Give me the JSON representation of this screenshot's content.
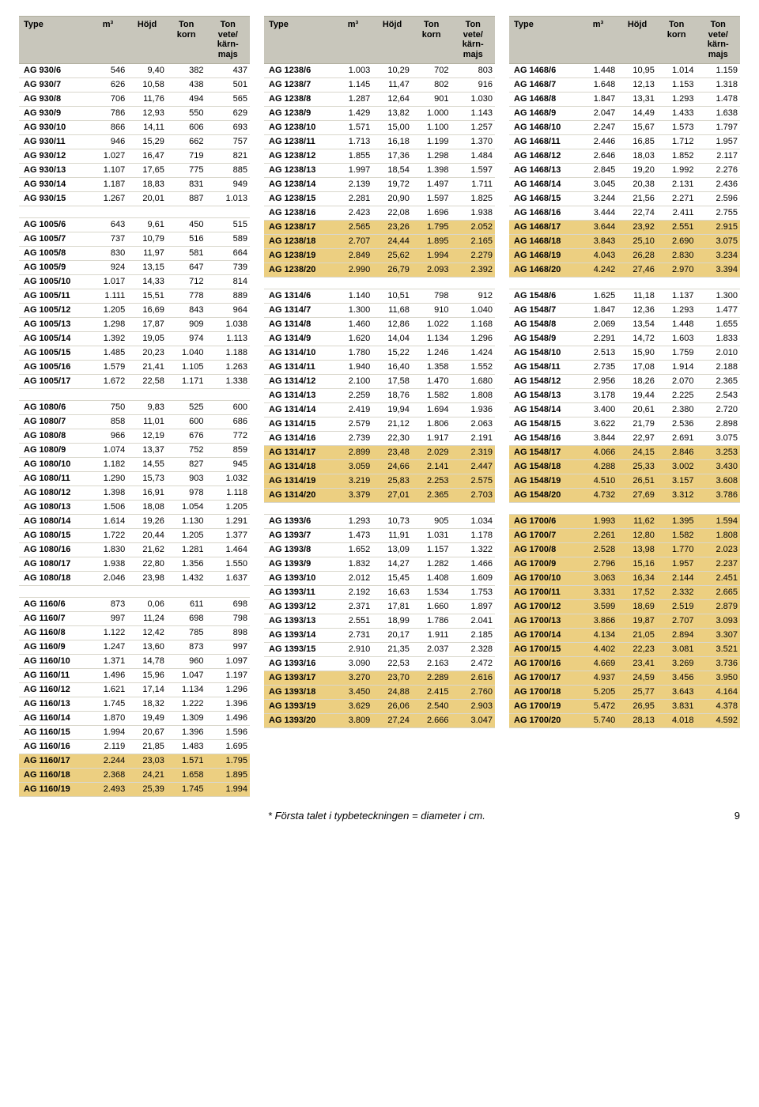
{
  "header": {
    "cols": [
      "Type",
      "m³",
      "Höjd",
      "Ton korn",
      "Ton vete/ kärn- majs"
    ]
  },
  "colors": {
    "header_bg": "#c8c6bb",
    "row_border": "#d9d7cc",
    "highlight_bg": "#eccf81",
    "text": "#000000",
    "background": "#ffffff"
  },
  "footnote_text": "* Första talet i typbeteckningen = diameter i cm.",
  "page_number": "9",
  "column1": [
    {
      "r": [
        "AG 930/6",
        "546",
        "9,40",
        "382",
        "437"
      ]
    },
    {
      "r": [
        "AG 930/7",
        "626",
        "10,58",
        "438",
        "501"
      ]
    },
    {
      "r": [
        "AG 930/8",
        "706",
        "11,76",
        "494",
        "565"
      ]
    },
    {
      "r": [
        "AG 930/9",
        "786",
        "12,93",
        "550",
        "629"
      ]
    },
    {
      "r": [
        "AG 930/10",
        "866",
        "14,11",
        "606",
        "693"
      ]
    },
    {
      "r": [
        "AG 930/11",
        "946",
        "15,29",
        "662",
        "757"
      ]
    },
    {
      "r": [
        "AG 930/12",
        "1.027",
        "16,47",
        "719",
        "821"
      ]
    },
    {
      "r": [
        "AG 930/13",
        "1.107",
        "17,65",
        "775",
        "885"
      ]
    },
    {
      "r": [
        "AG 930/14",
        "1.187",
        "18,83",
        "831",
        "949"
      ]
    },
    {
      "r": [
        "AG 930/15",
        "1.267",
        "20,01",
        "887",
        "1.013"
      ]
    },
    {
      "spacer": true
    },
    {
      "r": [
        "AG 1005/6",
        "643",
        "9,61",
        "450",
        "515"
      ]
    },
    {
      "r": [
        "AG 1005/7",
        "737",
        "10,79",
        "516",
        "589"
      ]
    },
    {
      "r": [
        "AG 1005/8",
        "830",
        "11,97",
        "581",
        "664"
      ]
    },
    {
      "r": [
        "AG 1005/9",
        "924",
        "13,15",
        "647",
        "739"
      ]
    },
    {
      "r": [
        "AG 1005/10",
        "1.017",
        "14,33",
        "712",
        "814"
      ]
    },
    {
      "r": [
        "AG 1005/11",
        "1.111",
        "15,51",
        "778",
        "889"
      ]
    },
    {
      "r": [
        "AG 1005/12",
        "1.205",
        "16,69",
        "843",
        "964"
      ]
    },
    {
      "r": [
        "AG 1005/13",
        "1.298",
        "17,87",
        "909",
        "1.038"
      ]
    },
    {
      "r": [
        "AG 1005/14",
        "1.392",
        "19,05",
        "974",
        "1.113"
      ]
    },
    {
      "r": [
        "AG 1005/15",
        "1.485",
        "20,23",
        "1.040",
        "1.188"
      ]
    },
    {
      "r": [
        "AG 1005/16",
        "1.579",
        "21,41",
        "1.105",
        "1.263"
      ]
    },
    {
      "r": [
        "AG 1005/17",
        "1.672",
        "22,58",
        "1.171",
        "1.338"
      ]
    },
    {
      "spacer": true
    },
    {
      "r": [
        "AG 1080/6",
        "750",
        "9,83",
        "525",
        "600"
      ]
    },
    {
      "r": [
        "AG 1080/7",
        "858",
        "11,01",
        "600",
        "686"
      ]
    },
    {
      "r": [
        "AG 1080/8",
        "966",
        "12,19",
        "676",
        "772"
      ]
    },
    {
      "r": [
        "AG 1080/9",
        "1.074",
        "13,37",
        "752",
        "859"
      ]
    },
    {
      "r": [
        "AG 1080/10",
        "1.182",
        "14,55",
        "827",
        "945"
      ]
    },
    {
      "r": [
        "AG 1080/11",
        "1.290",
        "15,73",
        "903",
        "1.032"
      ]
    },
    {
      "r": [
        "AG 1080/12",
        "1.398",
        "16,91",
        "978",
        "1.118"
      ]
    },
    {
      "r": [
        "AG 1080/13",
        "1.506",
        "18,08",
        "1.054",
        "1.205"
      ]
    },
    {
      "r": [
        "AG 1080/14",
        "1.614",
        "19,26",
        "1.130",
        "1.291"
      ]
    },
    {
      "r": [
        "AG 1080/15",
        "1.722",
        "20,44",
        "1.205",
        "1.377"
      ]
    },
    {
      "r": [
        "AG 1080/16",
        "1.830",
        "21,62",
        "1.281",
        "1.464"
      ]
    },
    {
      "r": [
        "AG 1080/17",
        "1.938",
        "22,80",
        "1.356",
        "1.550"
      ]
    },
    {
      "r": [
        "AG 1080/18",
        "2.046",
        "23,98",
        "1.432",
        "1.637"
      ]
    },
    {
      "spacer": true
    },
    {
      "r": [
        "AG 1160/6",
        "873",
        "0,06",
        "611",
        "698"
      ]
    },
    {
      "r": [
        "AG 1160/7",
        "997",
        "11,24",
        "698",
        "798"
      ]
    },
    {
      "r": [
        "AG 1160/8",
        "1.122",
        "12,42",
        "785",
        "898"
      ]
    },
    {
      "r": [
        "AG 1160/9",
        "1.247",
        "13,60",
        "873",
        "997"
      ]
    },
    {
      "r": [
        "AG 1160/10",
        "1.371",
        "14,78",
        "960",
        "1.097"
      ]
    },
    {
      "r": [
        "AG 1160/11",
        "1.496",
        "15,96",
        "1.047",
        "1.197"
      ]
    },
    {
      "r": [
        "AG 1160/12",
        "1.621",
        "17,14",
        "1.134",
        "1.296"
      ]
    },
    {
      "r": [
        "AG 1160/13",
        "1.745",
        "18,32",
        "1.222",
        "1.396"
      ]
    },
    {
      "r": [
        "AG 1160/14",
        "1.870",
        "19,49",
        "1.309",
        "1.496"
      ]
    },
    {
      "r": [
        "AG 1160/15",
        "1.994",
        "20,67",
        "1.396",
        "1.596"
      ]
    },
    {
      "r": [
        "AG 1160/16",
        "2.119",
        "21,85",
        "1.483",
        "1.695"
      ]
    },
    {
      "r": [
        "AG 1160/17",
        "2.244",
        "23,03",
        "1.571",
        "1.795"
      ],
      "hl": true
    },
    {
      "r": [
        "AG 1160/18",
        "2.368",
        "24,21",
        "1.658",
        "1.895"
      ],
      "hl": true
    },
    {
      "r": [
        "AG 1160/19",
        "2.493",
        "25,39",
        "1.745",
        "1.994"
      ],
      "hl": true
    }
  ],
  "column2": [
    {
      "r": [
        "AG 1238/6",
        "1.003",
        "10,29",
        "702",
        "803"
      ]
    },
    {
      "r": [
        "AG 1238/7",
        "1.145",
        "11,47",
        "802",
        "916"
      ]
    },
    {
      "r": [
        "AG 1238/8",
        "1.287",
        "12,64",
        "901",
        "1.030"
      ]
    },
    {
      "r": [
        "AG 1238/9",
        "1.429",
        "13,82",
        "1.000",
        "1.143"
      ]
    },
    {
      "r": [
        "AG 1238/10",
        "1.571",
        "15,00",
        "1.100",
        "1.257"
      ]
    },
    {
      "r": [
        "AG 1238/11",
        "1.713",
        "16,18",
        "1.199",
        "1.370"
      ]
    },
    {
      "r": [
        "AG 1238/12",
        "1.855",
        "17,36",
        "1.298",
        "1.484"
      ]
    },
    {
      "r": [
        "AG 1238/13",
        "1.997",
        "18,54",
        "1.398",
        "1.597"
      ]
    },
    {
      "r": [
        "AG 1238/14",
        "2.139",
        "19,72",
        "1.497",
        "1.711"
      ]
    },
    {
      "r": [
        "AG 1238/15",
        "2.281",
        "20,90",
        "1.597",
        "1.825"
      ]
    },
    {
      "r": [
        "AG 1238/16",
        "2.423",
        "22,08",
        "1.696",
        "1.938"
      ]
    },
    {
      "r": [
        "AG 1238/17",
        "2.565",
        "23,26",
        "1.795",
        "2.052"
      ],
      "hl": true
    },
    {
      "r": [
        "AG 1238/18",
        "2.707",
        "24,44",
        "1.895",
        "2.165"
      ],
      "hl": true
    },
    {
      "r": [
        "AG 1238/19",
        "2.849",
        "25,62",
        "1.994",
        "2.279"
      ],
      "hl": true
    },
    {
      "r": [
        "AG 1238/20",
        "2.990",
        "26,79",
        "2.093",
        "2.392"
      ],
      "hl": true
    },
    {
      "spacer": true
    },
    {
      "r": [
        "AG 1314/6",
        "1.140",
        "10,51",
        "798",
        "912"
      ]
    },
    {
      "r": [
        "AG 1314/7",
        "1.300",
        "11,68",
        "910",
        "1.040"
      ]
    },
    {
      "r": [
        "AG 1314/8",
        "1.460",
        "12,86",
        "1.022",
        "1.168"
      ]
    },
    {
      "r": [
        "AG 1314/9",
        "1.620",
        "14,04",
        "1.134",
        "1.296"
      ]
    },
    {
      "r": [
        "AG 1314/10",
        "1.780",
        "15,22",
        "1.246",
        "1.424"
      ]
    },
    {
      "r": [
        "AG 1314/11",
        "1.940",
        "16,40",
        "1.358",
        "1.552"
      ]
    },
    {
      "r": [
        "AG 1314/12",
        "2.100",
        "17,58",
        "1.470",
        "1.680"
      ]
    },
    {
      "r": [
        "AG 1314/13",
        "2.259",
        "18,76",
        "1.582",
        "1.808"
      ]
    },
    {
      "r": [
        "AG 1314/14",
        "2.419",
        "19,94",
        "1.694",
        "1.936"
      ]
    },
    {
      "r": [
        "AG 1314/15",
        "2.579",
        "21,12",
        "1.806",
        "2.063"
      ]
    },
    {
      "r": [
        "AG 1314/16",
        "2.739",
        "22,30",
        "1.917",
        "2.191"
      ]
    },
    {
      "r": [
        "AG 1314/17",
        "2.899",
        "23,48",
        "2.029",
        "2.319"
      ],
      "hl": true
    },
    {
      "r": [
        "AG 1314/18",
        "3.059",
        "24,66",
        "2.141",
        "2.447"
      ],
      "hl": true
    },
    {
      "r": [
        "AG 1314/19",
        "3.219",
        "25,83",
        "2.253",
        "2.575"
      ],
      "hl": true
    },
    {
      "r": [
        "AG 1314/20",
        "3.379",
        "27,01",
        "2.365",
        "2.703"
      ],
      "hl": true
    },
    {
      "spacer": true
    },
    {
      "r": [
        "AG 1393/6",
        "1.293",
        "10,73",
        "905",
        "1.034"
      ]
    },
    {
      "r": [
        "AG 1393/7",
        "1.473",
        "11,91",
        "1.031",
        "1.178"
      ]
    },
    {
      "r": [
        "AG 1393/8",
        "1.652",
        "13,09",
        "1.157",
        "1.322"
      ]
    },
    {
      "r": [
        "AG 1393/9",
        "1.832",
        "14,27",
        "1.282",
        "1.466"
      ]
    },
    {
      "r": [
        "AG 1393/10",
        "2.012",
        "15,45",
        "1.408",
        "1.609"
      ]
    },
    {
      "r": [
        "AG 1393/11",
        "2.192",
        "16,63",
        "1.534",
        "1.753"
      ]
    },
    {
      "r": [
        "AG 1393/12",
        "2.371",
        "17,81",
        "1.660",
        "1.897"
      ]
    },
    {
      "r": [
        "AG 1393/13",
        "2.551",
        "18,99",
        "1.786",
        "2.041"
      ]
    },
    {
      "r": [
        "AG 1393/14",
        "2.731",
        "20,17",
        "1.911",
        "2.185"
      ]
    },
    {
      "r": [
        "AG 1393/15",
        "2.910",
        "21,35",
        "2.037",
        "2.328"
      ]
    },
    {
      "r": [
        "AG 1393/16",
        "3.090",
        "22,53",
        "2.163",
        "2.472"
      ]
    },
    {
      "r": [
        "AG 1393/17",
        "3.270",
        "23,70",
        "2.289",
        "2.616"
      ],
      "hl": true
    },
    {
      "r": [
        "AG 1393/18",
        "3.450",
        "24,88",
        "2.415",
        "2.760"
      ],
      "hl": true
    },
    {
      "r": [
        "AG 1393/19",
        "3.629",
        "26,06",
        "2.540",
        "2.903"
      ],
      "hl": true
    },
    {
      "r": [
        "AG 1393/20",
        "3.809",
        "27,24",
        "2.666",
        "3.047"
      ],
      "hl": true
    }
  ],
  "column3": [
    {
      "r": [
        "AG 1468/6",
        "1.448",
        "10,95",
        "1.014",
        "1.159"
      ]
    },
    {
      "r": [
        "AG 1468/7",
        "1.648",
        "12,13",
        "1.153",
        "1.318"
      ]
    },
    {
      "r": [
        "AG 1468/8",
        "1.847",
        "13,31",
        "1.293",
        "1.478"
      ]
    },
    {
      "r": [
        "AG 1468/9",
        "2.047",
        "14,49",
        "1.433",
        "1.638"
      ]
    },
    {
      "r": [
        "AG 1468/10",
        "2.247",
        "15,67",
        "1.573",
        "1.797"
      ]
    },
    {
      "r": [
        "AG 1468/11",
        "2.446",
        "16,85",
        "1.712",
        "1.957"
      ]
    },
    {
      "r": [
        "AG 1468/12",
        "2.646",
        "18,03",
        "1.852",
        "2.117"
      ]
    },
    {
      "r": [
        "AG 1468/13",
        "2.845",
        "19,20",
        "1.992",
        "2.276"
      ]
    },
    {
      "r": [
        "AG 1468/14",
        "3.045",
        "20,38",
        "2.131",
        "2.436"
      ]
    },
    {
      "r": [
        "AG 1468/15",
        "3.244",
        "21,56",
        "2.271",
        "2.596"
      ]
    },
    {
      "r": [
        "AG 1468/16",
        "3.444",
        "22,74",
        "2.411",
        "2.755"
      ]
    },
    {
      "r": [
        "AG 1468/17",
        "3.644",
        "23,92",
        "2.551",
        "2.915"
      ],
      "hl": true
    },
    {
      "r": [
        "AG 1468/18",
        "3.843",
        "25,10",
        "2.690",
        "3.075"
      ],
      "hl": true
    },
    {
      "r": [
        "AG 1468/19",
        "4.043",
        "26,28",
        "2.830",
        "3.234"
      ],
      "hl": true
    },
    {
      "r": [
        "AG 1468/20",
        "4.242",
        "27,46",
        "2.970",
        "3.394"
      ],
      "hl": true
    },
    {
      "spacer": true
    },
    {
      "r": [
        "AG 1548/6",
        "1.625",
        "11,18",
        "1.137",
        "1.300"
      ]
    },
    {
      "r": [
        "AG 1548/7",
        "1.847",
        "12,36",
        "1.293",
        "1.477"
      ]
    },
    {
      "r": [
        "AG 1548/8",
        "2.069",
        "13,54",
        "1.448",
        "1.655"
      ]
    },
    {
      "r": [
        "AG 1548/9",
        "2.291",
        "14,72",
        "1.603",
        "1.833"
      ]
    },
    {
      "r": [
        "AG 1548/10",
        "2.513",
        "15,90",
        "1.759",
        "2.010"
      ]
    },
    {
      "r": [
        "AG 1548/11",
        "2.735",
        "17,08",
        "1.914",
        "2.188"
      ]
    },
    {
      "r": [
        "AG 1548/12",
        "2.956",
        "18,26",
        "2.070",
        "2.365"
      ]
    },
    {
      "r": [
        "AG 1548/13",
        "3.178",
        "19,44",
        "2.225",
        "2.543"
      ]
    },
    {
      "r": [
        "AG 1548/14",
        "3.400",
        "20,61",
        "2.380",
        "2.720"
      ]
    },
    {
      "r": [
        "AG 1548/15",
        "3.622",
        "21,79",
        "2.536",
        "2.898"
      ]
    },
    {
      "r": [
        "AG 1548/16",
        "3.844",
        "22,97",
        "2.691",
        "3.075"
      ]
    },
    {
      "r": [
        "AG 1548/17",
        "4.066",
        "24,15",
        "2.846",
        "3.253"
      ],
      "hl": true
    },
    {
      "r": [
        "AG 1548/18",
        "4.288",
        "25,33",
        "3.002",
        "3.430"
      ],
      "hl": true
    },
    {
      "r": [
        "AG 1548/19",
        "4.510",
        "26,51",
        "3.157",
        "3.608"
      ],
      "hl": true
    },
    {
      "r": [
        "AG 1548/20",
        "4.732",
        "27,69",
        "3.312",
        "3.786"
      ],
      "hl": true
    },
    {
      "spacer": true
    },
    {
      "r": [
        "AG 1700/6",
        "1.993",
        "11,62",
        "1.395",
        "1.594"
      ],
      "hl": true
    },
    {
      "r": [
        "AG 1700/7",
        "2.261",
        "12,80",
        "1.582",
        "1.808"
      ],
      "hl": true
    },
    {
      "r": [
        "AG 1700/8",
        "2.528",
        "13,98",
        "1.770",
        "2.023"
      ],
      "hl": true
    },
    {
      "r": [
        "AG 1700/9",
        "2.796",
        "15,16",
        "1.957",
        "2.237"
      ],
      "hl": true
    },
    {
      "r": [
        "AG 1700/10",
        "3.063",
        "16,34",
        "2.144",
        "2.451"
      ],
      "hl": true
    },
    {
      "r": [
        "AG 1700/11",
        "3.331",
        "17,52",
        "2.332",
        "2.665"
      ],
      "hl": true
    },
    {
      "r": [
        "AG 1700/12",
        "3.599",
        "18,69",
        "2.519",
        "2.879"
      ],
      "hl": true
    },
    {
      "r": [
        "AG 1700/13",
        "3.866",
        "19,87",
        "2.707",
        "3.093"
      ],
      "hl": true
    },
    {
      "r": [
        "AG 1700/14",
        "4.134",
        "21,05",
        "2.894",
        "3.307"
      ],
      "hl": true
    },
    {
      "r": [
        "AG 1700/15",
        "4.402",
        "22,23",
        "3.081",
        "3.521"
      ],
      "hl": true
    },
    {
      "r": [
        "AG 1700/16",
        "4.669",
        "23,41",
        "3.269",
        "3.736"
      ],
      "hl": true
    },
    {
      "r": [
        "AG 1700/17",
        "4.937",
        "24,59",
        "3.456",
        "3.950"
      ],
      "hl": true
    },
    {
      "r": [
        "AG 1700/18",
        "5.205",
        "25,77",
        "3.643",
        "4.164"
      ],
      "hl": true
    },
    {
      "r": [
        "AG 1700/19",
        "5.472",
        "26,95",
        "3.831",
        "4.378"
      ],
      "hl": true
    },
    {
      "r": [
        "AG 1700/20",
        "5.740",
        "28,13",
        "4.018",
        "4.592"
      ],
      "hl": true
    }
  ]
}
